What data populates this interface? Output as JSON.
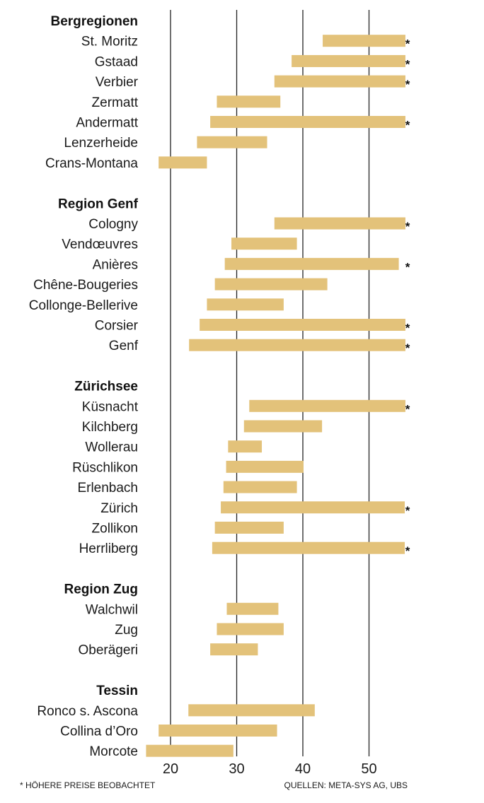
{
  "chart_data": {
    "type": "bar",
    "subtype": "range",
    "xlim": [
      14.5,
      60
    ],
    "ticks": [
      20,
      30,
      40,
      50
    ],
    "grid": true,
    "bar_color": "#e3c27a",
    "grid_color": "#222222",
    "groups": [
      {
        "name": "Bergregionen",
        "items": [
          {
            "label": "St. Moritz",
            "low": 43.0,
            "high": 55.5,
            "flag": "*"
          },
          {
            "label": "Gstaad",
            "low": 38.3,
            "high": 55.5,
            "flag": "*"
          },
          {
            "label": "Verbier",
            "low": 35.7,
            "high": 55.5,
            "flag": "*"
          },
          {
            "label": "Zermatt",
            "low": 27.0,
            "high": 36.6,
            "flag": ""
          },
          {
            "label": "Andermatt",
            "low": 26.0,
            "high": 55.5,
            "flag": "*"
          },
          {
            "label": "Lenzerheide",
            "low": 24.0,
            "high": 34.6,
            "flag": ""
          },
          {
            "label": "Crans-Montana",
            "low": 18.2,
            "high": 25.5,
            "flag": ""
          }
        ]
      },
      {
        "name": "Region Genf",
        "items": [
          {
            "label": "Cologny",
            "low": 35.7,
            "high": 55.5,
            "flag": "*"
          },
          {
            "label": "Vendœuvres",
            "low": 29.2,
            "high": 39.1,
            "flag": ""
          },
          {
            "label": "Anières",
            "low": 28.2,
            "high": 54.5,
            "flag": "*"
          },
          {
            "label": "Chêne-Bougeries",
            "low": 26.7,
            "high": 43.7,
            "flag": ""
          },
          {
            "label": "Collonge-Bellerive",
            "low": 25.5,
            "high": 37.1,
            "flag": ""
          },
          {
            "label": "Corsier",
            "low": 24.4,
            "high": 55.5,
            "flag": "*"
          },
          {
            "label": "Genf",
            "low": 22.8,
            "high": 55.5,
            "flag": "*"
          }
        ]
      },
      {
        "name": "Zürichsee",
        "items": [
          {
            "label": "Küsnacht",
            "low": 31.9,
            "high": 55.5,
            "flag": "*"
          },
          {
            "label": "Kilchberg",
            "low": 31.1,
            "high": 42.9,
            "flag": ""
          },
          {
            "label": "Wollerau",
            "low": 28.7,
            "high": 33.8,
            "flag": ""
          },
          {
            "label": "Rüschlikon",
            "low": 28.4,
            "high": 40.1,
            "flag": ""
          },
          {
            "label": "Erlenbach",
            "low": 28.0,
            "high": 39.1,
            "flag": ""
          },
          {
            "label": "Zürich",
            "low": 27.6,
            "high": 55.4,
            "flag": "*"
          },
          {
            "label": "Zollikon",
            "low": 26.7,
            "high": 37.1,
            "flag": ""
          },
          {
            "label": "Herrliberg",
            "low": 26.3,
            "high": 55.4,
            "flag": "*"
          }
        ]
      },
      {
        "name": "Region Zug",
        "items": [
          {
            "label": "Walchwil",
            "low": 28.5,
            "high": 36.3,
            "flag": ""
          },
          {
            "label": "Zug",
            "low": 27.0,
            "high": 37.1,
            "flag": ""
          },
          {
            "label": "Oberägeri",
            "low": 26.0,
            "high": 33.2,
            "flag": ""
          }
        ]
      },
      {
        "name": "Tessin",
        "items": [
          {
            "label": "Ronco s. Ascona",
            "low": 22.7,
            "high": 41.8,
            "flag": ""
          },
          {
            "label": "Collina d’Oro",
            "low": 18.2,
            "high": 36.1,
            "flag": ""
          },
          {
            "label": "Morcote",
            "low": 16.3,
            "high": 29.5,
            "flag": ""
          }
        ]
      }
    ],
    "footnote": "* HÖHERE PREISE BEOBACHTET",
    "source": "QUELLEN: META-SYS AG, UBS"
  }
}
